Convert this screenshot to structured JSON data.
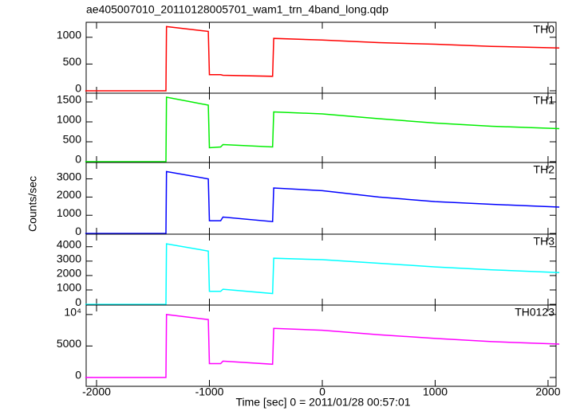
{
  "chart_data": [
    {
      "type": "line",
      "title": "ae405007010_20110128005701_wam1_trn_4band_long.qdp",
      "x": [
        -2100,
        -1385,
        -1380,
        -1010,
        -1000,
        -900,
        -880,
        -440,
        -430,
        0,
        500,
        1000,
        1500,
        2100
      ],
      "series": [
        {
          "name": "TH0",
          "color": "#ff0000",
          "values": [
            0,
            0,
            1200,
            1110,
            300,
            300,
            290,
            270,
            980,
            950,
            900,
            870,
            830,
            800
          ]
        }
      ],
      "xlim": [
        -2092,
        2071
      ],
      "xticks": [
        -2000,
        -1000,
        0,
        1000,
        2000
      ],
      "ylim": [
        -45,
        1280
      ],
      "yticks": [
        0,
        500,
        1000
      ]
    },
    {
      "type": "line",
      "x": [
        -2100,
        -1385,
        -1380,
        -1010,
        -1000,
        -900,
        -880,
        -440,
        -430,
        0,
        500,
        1000,
        1500,
        2100
      ],
      "series": [
        {
          "name": "TH1",
          "color": "#00ee00",
          "values": [
            0,
            0,
            1620,
            1420,
            350,
            370,
            430,
            370,
            1250,
            1200,
            1080,
            970,
            890,
            830
          ]
        }
      ],
      "xlim": [
        -2092,
        2071
      ],
      "xticks": [
        -2000,
        -1000,
        0,
        1000,
        2000
      ],
      "ylim": [
        -20,
        1720
      ],
      "yticks": [
        0,
        500,
        1000,
        1500
      ]
    },
    {
      "type": "line",
      "ylabel": "Counts/sec",
      "x": [
        -2100,
        -1385,
        -1380,
        -1010,
        -1000,
        -900,
        -880,
        -440,
        -430,
        0,
        500,
        1000,
        1500,
        2100
      ],
      "series": [
        {
          "name": "TH2",
          "color": "#0000ff",
          "values": [
            0,
            0,
            3400,
            3000,
            700,
            700,
            900,
            650,
            2500,
            2350,
            2000,
            1750,
            1600,
            1450
          ]
        }
      ],
      "xlim": [
        -2092,
        2071
      ],
      "xticks": [
        -2000,
        -1000,
        0,
        1000,
        2000
      ],
      "ylim": [
        -40,
        3900
      ],
      "yticks": [
        0,
        1000,
        2000,
        3000
      ]
    },
    {
      "type": "line",
      "x": [
        -2100,
        -1385,
        -1380,
        -1010,
        -1000,
        -900,
        -880,
        -440,
        -430,
        0,
        500,
        1000,
        1500,
        2100
      ],
      "series": [
        {
          "name": "TH3",
          "color": "#00ffff",
          "values": [
            0,
            0,
            4200,
            3700,
            900,
            900,
            1050,
            750,
            3200,
            3100,
            2850,
            2600,
            2400,
            2200
          ]
        }
      ],
      "xlim": [
        -2092,
        2071
      ],
      "xticks": [
        -2000,
        -1000,
        0,
        1000,
        2000
      ],
      "ylim": [
        -50,
        4870
      ],
      "yticks": [
        0,
        1000,
        2000,
        3000,
        4000
      ]
    },
    {
      "type": "line",
      "xlabel": "Time [sec] 0 = 2011/01/28 00:57:01",
      "x": [
        -2100,
        -1385,
        -1380,
        -1010,
        -1000,
        -900,
        -880,
        -440,
        -430,
        0,
        500,
        1000,
        1500,
        2100
      ],
      "series": [
        {
          "name": "TH0123",
          "color": "#ff00ff",
          "values": [
            0,
            0,
            10000,
            9200,
            2200,
            2200,
            2600,
            2100,
            7800,
            7500,
            6800,
            6200,
            5700,
            5300
          ]
        }
      ],
      "xlim": [
        -2092,
        2071
      ],
      "xticks": [
        -2000,
        -1000,
        0,
        1000,
        2000
      ],
      "ylim": [
        -1400,
        11500
      ],
      "yticks": [
        0,
        5000,
        {
          "value": 10000,
          "label": "10⁴"
        }
      ]
    }
  ]
}
